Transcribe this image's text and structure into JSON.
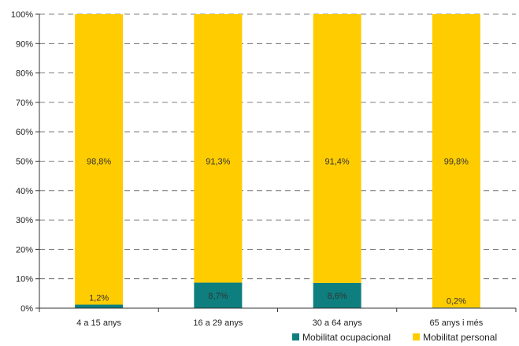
{
  "chart_data": {
    "type": "bar",
    "stacked": true,
    "categories": [
      "4 a 15 anys",
      "16 a 29 anys",
      "30 a 64 anys",
      "65 anys i més"
    ],
    "series": [
      {
        "name": "Mobilitat ocupacional",
        "values": [
          1.2,
          8.7,
          8.6,
          0.2
        ],
        "labels": [
          "1,2%",
          "8,7%",
          "8,6%",
          "0,2%"
        ],
        "color": "#0e7f7e"
      },
      {
        "name": "Mobilitat personal",
        "values": [
          98.8,
          91.3,
          91.4,
          99.8
        ],
        "labels": [
          "98,8%",
          "91,3%",
          "91,4%",
          "99,8%"
        ],
        "color": "#ffcc00"
      }
    ],
    "ylim": [
      0,
      100
    ],
    "y_ticks": [
      "0%",
      "10%",
      "20%",
      "30%",
      "40%",
      "50%",
      "60%",
      "70%",
      "80%",
      "90%",
      "100%"
    ],
    "grid": "dashed horizontal",
    "legend": "bottom-right",
    "title": "",
    "xlabel": "",
    "ylabel": ""
  }
}
